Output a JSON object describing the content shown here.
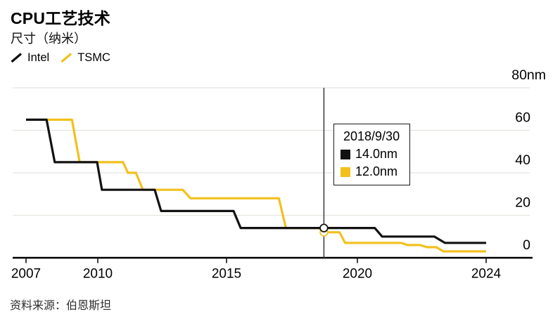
{
  "header": {
    "title": "CPU工艺技术",
    "subtitle": "尺寸（纳米）"
  },
  "source": "资料来源：伯恩斯坦",
  "chart_data": {
    "type": "line",
    "title": "CPU工艺技术",
    "subtitle": "尺寸（纳米）",
    "unit": "nm",
    "line_style": "step",
    "grid": "horizontal",
    "legend_position": "top-left",
    "xlim": [
      2007,
      2024
    ],
    "ylim": [
      0,
      80
    ],
    "x_ticks": [
      2007,
      2010,
      2015,
      2020,
      2024
    ],
    "y_ticks": [
      0,
      20,
      40,
      60,
      80
    ],
    "y_tick_labels": [
      "0",
      "20",
      "40",
      "60",
      "80nm"
    ],
    "series": [
      {
        "name": "Intel",
        "color": "#121212",
        "points": [
          [
            2007.0,
            65
          ],
          [
            2007.86,
            65
          ],
          [
            2008.2,
            45
          ],
          [
            2009.97,
            45
          ],
          [
            2010.16,
            32
          ],
          [
            2012.21,
            32
          ],
          [
            2012.46,
            22
          ],
          [
            2015.27,
            22
          ],
          [
            2015.54,
            14
          ],
          [
            2020.54,
            14
          ],
          [
            2020.77,
            10
          ],
          [
            2022.39,
            10
          ],
          [
            2022.72,
            7
          ],
          [
            2024.0,
            7
          ]
        ]
      },
      {
        "name": "TSMC",
        "color": "#F3C01E",
        "points": [
          [
            2007.87,
            65
          ],
          [
            2008.92,
            65
          ],
          [
            2009.24,
            45
          ],
          [
            2010.98,
            45
          ],
          [
            2011.17,
            40
          ],
          [
            2011.48,
            40
          ],
          [
            2011.75,
            32
          ],
          [
            2013.3,
            32
          ],
          [
            2013.6,
            28
          ],
          [
            2017.0,
            28
          ],
          [
            2017.27,
            14
          ],
          [
            2018.55,
            14
          ],
          [
            2018.68,
            12
          ],
          [
            2019.32,
            12
          ],
          [
            2019.53,
            7
          ],
          [
            2021.36,
            7
          ],
          [
            2021.57,
            6
          ],
          [
            2021.95,
            6
          ],
          [
            2022.16,
            5
          ],
          [
            2022.45,
            5
          ],
          [
            2022.67,
            3
          ],
          [
            2024.0,
            3
          ]
        ]
      }
    ],
    "cursor": {
      "x": 2018.72,
      "date": "2018/9/30",
      "values": [
        {
          "series": "Intel",
          "value": 14.0,
          "display": "14.0nm",
          "color": "#121212"
        },
        {
          "series": "TSMC",
          "value": 12.0,
          "display": "12.0nm",
          "color": "#F3C01E"
        }
      ]
    }
  }
}
